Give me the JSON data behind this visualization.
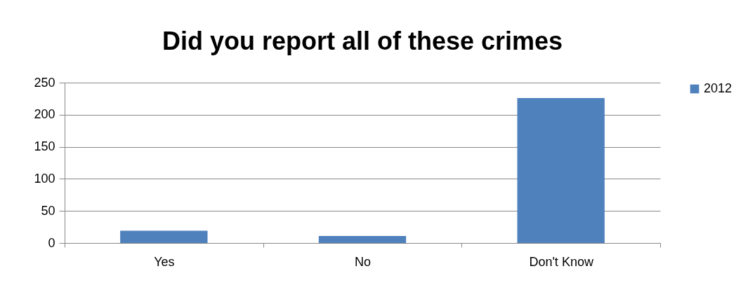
{
  "chart_data": {
    "type": "bar",
    "title": "Did you report all of these crimes",
    "categories": [
      "Yes",
      "No",
      "Don't Know"
    ],
    "series": [
      {
        "name": "2012",
        "color": "#4f81bd",
        "values": [
          19,
          11,
          226
        ]
      }
    ],
    "ylim": [
      0,
      250
    ],
    "yticks": [
      0,
      50,
      100,
      150,
      200,
      250
    ],
    "grid": "y",
    "legend": "right"
  }
}
